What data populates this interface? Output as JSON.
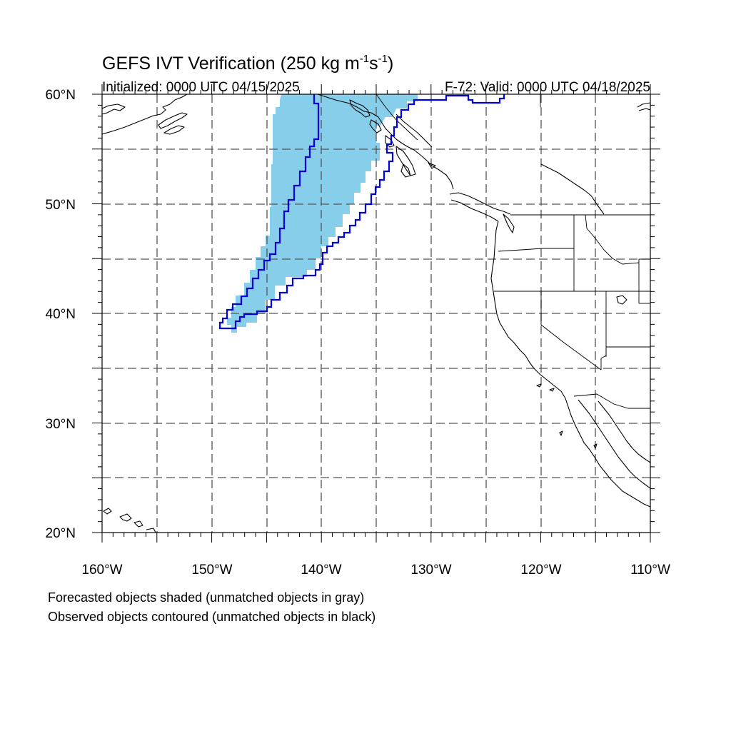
{
  "title_main": "GEFS IVT Verification (250 kg m",
  "title_exp1": "-1",
  "title_mid": "s",
  "title_exp2": "-1",
  "title_end": ")",
  "initialized": "Initialized: 0000 UTC 04/15/2025",
  "valid": "F-72: Valid: 0000 UTC 04/18/2025",
  "caption_line1": "Forecasted objects shaded (unmatched objects in gray)",
  "caption_line2": "Observed objects contoured (unmatched objects in black)",
  "lat_labels": [
    "60°N",
    "50°N",
    "40°N",
    "30°N",
    "20°N"
  ],
  "lon_labels": [
    "160°W",
    "150°W",
    "140°W",
    "130°W",
    "120°W",
    "110°W"
  ],
  "colors": {
    "forecast_fill": "#87ceeb",
    "observed_contour": "#0000dd",
    "coastline": "#000000",
    "grid": "#555555"
  },
  "chart_data": {
    "type": "map",
    "projection": "cylindrical equidistant",
    "lon_range": [
      -160,
      -110
    ],
    "lat_range": [
      20,
      60
    ],
    "grid": true,
    "objects": [
      {
        "kind": "forecast",
        "style": "shaded",
        "color": "#87ceeb",
        "outline_lonlat": [
          [
            -143.5,
            60
          ],
          [
            -130.5,
            60
          ],
          [
            -133.5,
            56
          ],
          [
            -134.5,
            55
          ],
          [
            -137,
            50
          ],
          [
            -140,
            45
          ],
          [
            -143,
            43
          ],
          [
            -147,
            39
          ],
          [
            -148,
            38.5
          ],
          [
            -148,
            40
          ],
          [
            -145,
            44
          ],
          [
            -144,
            47
          ],
          [
            -144.5,
            51
          ],
          [
            -144.5,
            55.5
          ],
          [
            -143.5,
            58
          ]
        ]
      },
      {
        "kind": "observed",
        "style": "contour",
        "color": "#0000dd",
        "outline_lonlat": [
          [
            -140,
            60
          ],
          [
            -140.5,
            60
          ],
          [
            -139.5,
            59.5
          ],
          [
            -139.5,
            57
          ],
          [
            -140.5,
            55
          ],
          [
            -141,
            54
          ],
          [
            -142,
            51
          ],
          [
            -143.5,
            47.5
          ],
          [
            -144,
            46
          ],
          [
            -145,
            45
          ],
          [
            -146,
            43.5
          ],
          [
            -147,
            42
          ],
          [
            -148,
            41
          ],
          [
            -148.5,
            40.5
          ],
          [
            -149,
            39
          ],
          [
            -148,
            39
          ],
          [
            -146,
            39.5
          ],
          [
            -145,
            40
          ],
          [
            -143.5,
            42
          ],
          [
            -142,
            43.5
          ],
          [
            -140,
            45
          ],
          [
            -138.5,
            47
          ],
          [
            -137,
            49
          ],
          [
            -135.5,
            51
          ],
          [
            -134.5,
            53
          ],
          [
            -133.5,
            54.5
          ],
          [
            -134.5,
            56
          ],
          [
            -135,
            58
          ],
          [
            -133,
            59
          ],
          [
            -132,
            60
          ],
          [
            -122,
            60
          ],
          [
            -122.5,
            60
          ],
          [
            -134,
            59.8
          ]
        ]
      }
    ]
  }
}
